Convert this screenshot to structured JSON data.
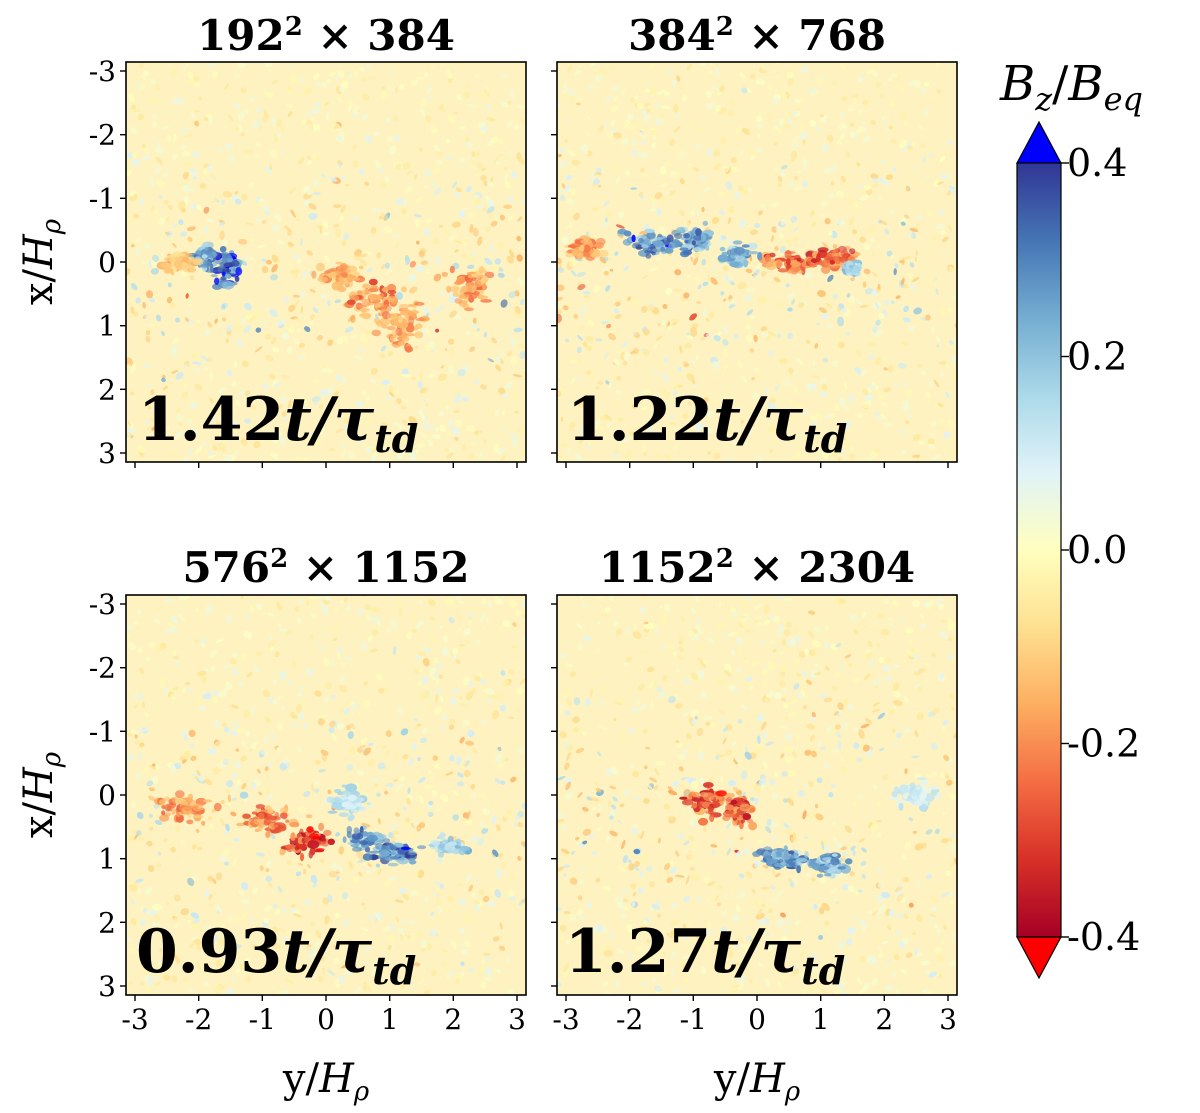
{
  "chart_data": {
    "type": "heatmap",
    "colorbar": {
      "label_main": "B",
      "label_sub_num": "z",
      "label_den": "B",
      "label_sub_den": "eq",
      "range": [
        -0.4,
        0.4
      ],
      "ticks": [
        "0.4",
        "0.2",
        "0.0",
        "-0.2",
        "-0.4"
      ],
      "tick_values": [
        0.4,
        0.2,
        0.0,
        -0.2,
        -0.4
      ],
      "extend": "both",
      "colors": {
        "max_over": "#0000ff",
        "high": "#313695",
        "mid_high": "#74add1",
        "zero": "#ffffbf",
        "mid_low": "#f46d43",
        "low": "#a50026",
        "min_under": "#ff0000"
      }
    },
    "panels": [
      {
        "title_base": "192",
        "title_exp": "2",
        "title_rest": " × 384",
        "time": "1.42",
        "time_suffix": "t/τ",
        "time_sub": "td",
        "features": [
          {
            "y": -1.6,
            "x": 0.1,
            "v": 0.4,
            "sy": 0.25,
            "sx": 0.3
          },
          {
            "y": -1.9,
            "x": -0.1,
            "v": 0.3,
            "sy": 0.15,
            "sx": 0.15
          },
          {
            "y": 0.8,
            "x": 0.6,
            "v": -0.25,
            "sy": 0.4,
            "sx": 0.25
          },
          {
            "y": 1.2,
            "x": 1.0,
            "v": -0.2,
            "sy": 0.3,
            "sx": 0.3
          },
          {
            "y": 2.3,
            "x": 0.4,
            "v": -0.22,
            "sy": 0.35,
            "sx": 0.25
          },
          {
            "y": -2.3,
            "x": 0.0,
            "v": -0.15,
            "sy": 0.3,
            "sx": 0.15
          },
          {
            "y": 0.2,
            "x": 0.2,
            "v": -0.18,
            "sy": 0.3,
            "sx": 0.2
          }
        ]
      },
      {
        "title_base": "384",
        "title_exp": "2",
        "title_rest": " × 768",
        "time": "1.22",
        "time_suffix": "t/τ",
        "time_sub": "td",
        "features": [
          {
            "y": -1.6,
            "x": -0.3,
            "v": 0.35,
            "sy": 0.4,
            "sx": 0.2
          },
          {
            "y": -1.0,
            "x": -0.35,
            "v": 0.3,
            "sy": 0.3,
            "sx": 0.2
          },
          {
            "y": -0.3,
            "x": -0.1,
            "v": 0.25,
            "sy": 0.25,
            "sx": 0.15
          },
          {
            "y": 0.5,
            "x": 0.0,
            "v": -0.3,
            "sy": 0.35,
            "sx": 0.15
          },
          {
            "y": 1.2,
            "x": -0.05,
            "v": -0.3,
            "sy": 0.35,
            "sx": 0.2
          },
          {
            "y": -2.7,
            "x": -0.2,
            "v": -0.2,
            "sy": 0.25,
            "sx": 0.15
          },
          {
            "y": 1.5,
            "x": 0.1,
            "v": 0.2,
            "sy": 0.1,
            "sx": 0.1
          }
        ]
      },
      {
        "title_base": "576",
        "title_exp": "2",
        "title_rest": " × 1152",
        "time": "0.93",
        "time_suffix": "t/τ",
        "time_sub": "td",
        "features": [
          {
            "y": -2.2,
            "x": 0.2,
            "v": -0.22,
            "sy": 0.35,
            "sx": 0.2
          },
          {
            "y": -0.9,
            "x": 0.4,
            "v": -0.25,
            "sy": 0.35,
            "sx": 0.2
          },
          {
            "y": -0.3,
            "x": 0.7,
            "v": -0.35,
            "sy": 0.3,
            "sx": 0.2
          },
          {
            "y": 0.6,
            "x": 0.7,
            "v": 0.3,
            "sy": 0.3,
            "sx": 0.15
          },
          {
            "y": 1.1,
            "x": 0.9,
            "v": 0.35,
            "sy": 0.35,
            "sx": 0.15
          },
          {
            "y": 1.9,
            "x": 0.8,
            "v": 0.2,
            "sy": 0.25,
            "sx": 0.12
          },
          {
            "y": 0.3,
            "x": 0.1,
            "v": 0.15,
            "sy": 0.3,
            "sx": 0.2
          }
        ]
      },
      {
        "title_base": "1152",
        "title_exp": "2",
        "title_rest": " × 2304",
        "time": "1.27",
        "time_suffix": "t/τ",
        "time_sub": "td",
        "features": [
          {
            "y": -0.8,
            "x": 0.1,
            "v": -0.3,
            "sy": 0.3,
            "sx": 0.2
          },
          {
            "y": -0.3,
            "x": 0.25,
            "v": -0.35,
            "sy": 0.2,
            "sx": 0.25
          },
          {
            "y": 0.4,
            "x": 1.0,
            "v": 0.3,
            "sy": 0.35,
            "sx": 0.15
          },
          {
            "y": 1.1,
            "x": 1.1,
            "v": 0.28,
            "sy": 0.3,
            "sx": 0.15
          },
          {
            "y": 2.5,
            "x": 0.0,
            "v": 0.12,
            "sy": 0.3,
            "sx": 0.2
          }
        ]
      }
    ],
    "x_axis": {
      "label_main": "y",
      "label_den": "H",
      "label_sub": "ρ",
      "range": [
        -3.14159,
        3.14159
      ],
      "ticks": [
        -3,
        -2,
        -1,
        0,
        1,
        2,
        3
      ],
      "tick_labels": [
        "-3",
        "-2",
        "-1",
        "0",
        "1",
        "2",
        "3"
      ]
    },
    "y_axis": {
      "label_main": "x",
      "label_den": "H",
      "label_sub": "ρ",
      "range": [
        -3.14159,
        3.14159
      ],
      "inverted": true,
      "ticks": [
        -3,
        -2,
        -1,
        0,
        1,
        2,
        3
      ],
      "tick_labels": [
        "-3",
        "-2",
        "-1",
        "0",
        "1",
        "2",
        "3"
      ]
    }
  }
}
